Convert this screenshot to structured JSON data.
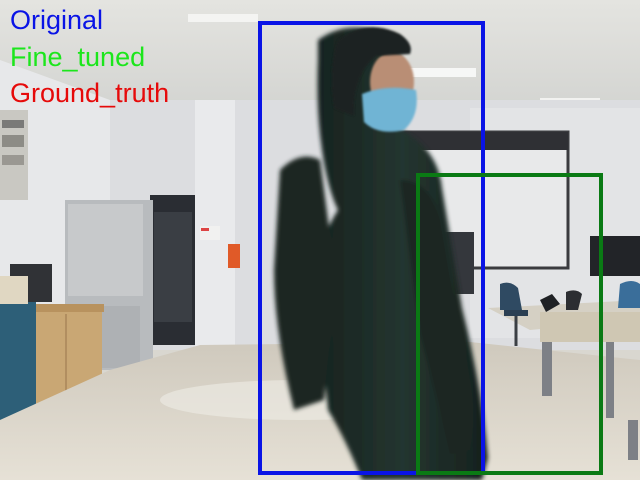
{
  "legend": {
    "original": {
      "label": "Original",
      "color": "#0a14e6"
    },
    "fine_tuned": {
      "label": "Fine_tuned",
      "color": "#1ce61c"
    },
    "ground_truth": {
      "label": "Ground_truth",
      "color": "#e60a0a"
    }
  },
  "boxes": {
    "original": {
      "color": "#0a14e6"
    },
    "fine_tuned": {
      "color": "#0a7a14"
    }
  }
}
